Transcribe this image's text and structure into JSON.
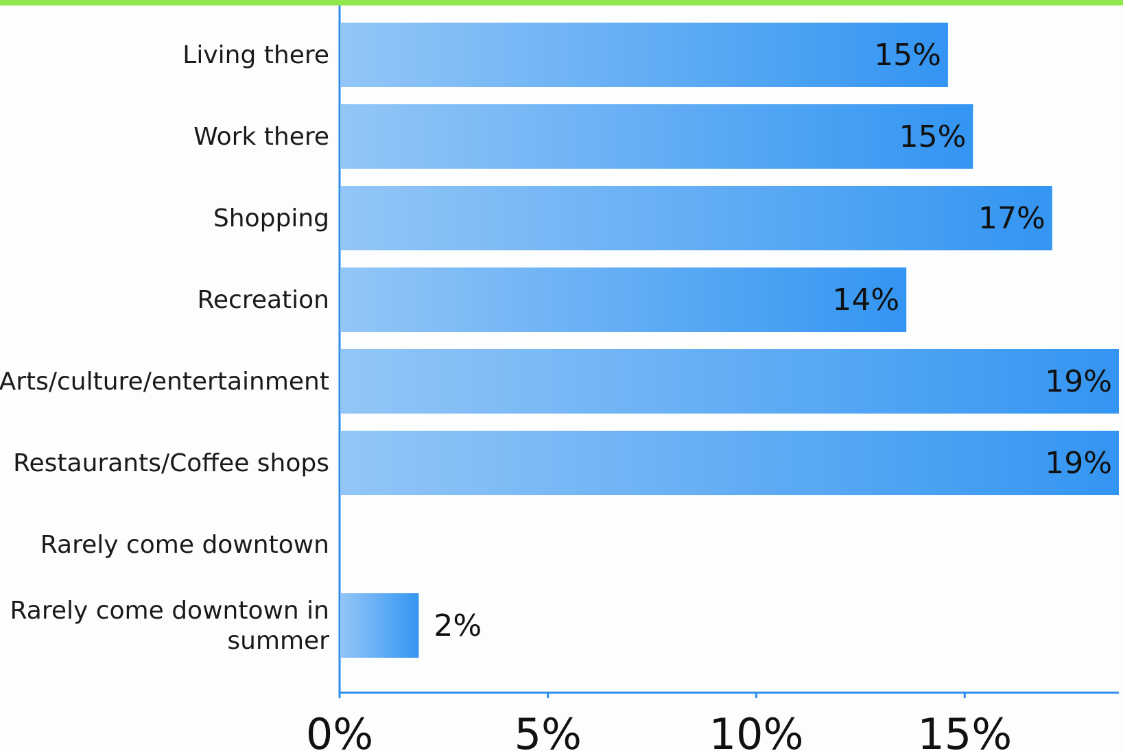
{
  "chart_data": {
    "type": "bar",
    "orientation": "horizontal",
    "categories": [
      [
        "Living there"
      ],
      [
        "Work there"
      ],
      [
        "Shopping"
      ],
      [
        "Recreation"
      ],
      [
        "Arts/culture/entertainment"
      ],
      [
        "Restaurants/Coffee shops"
      ],
      [
        "Rarely come downtown"
      ],
      [
        "Rarely come downtown in",
        "summer"
      ]
    ],
    "values": [
      14.6,
      15.2,
      17.1,
      13.6,
      18.7,
      18.7,
      null,
      1.9
    ],
    "value_labels": [
      "15%",
      "15%",
      "17%",
      "14%",
      "19%",
      "19%",
      "",
      "2%"
    ],
    "x_ticks": [
      {
        "value": 0,
        "label": "0%"
      },
      {
        "value": 5,
        "label": "5%"
      },
      {
        "value": 10,
        "label": "10%"
      },
      {
        "value": 15,
        "label": "15%"
      }
    ],
    "xlim": [
      0,
      18.7
    ],
    "title": "",
    "xlabel": "",
    "ylabel": "",
    "grid": false,
    "legend": "none"
  },
  "colors": {
    "top_bar": "#8ee84e",
    "axis": "#2f8ceb",
    "bar_start": "#93c6f7",
    "bar_end": "#3395f2"
  }
}
